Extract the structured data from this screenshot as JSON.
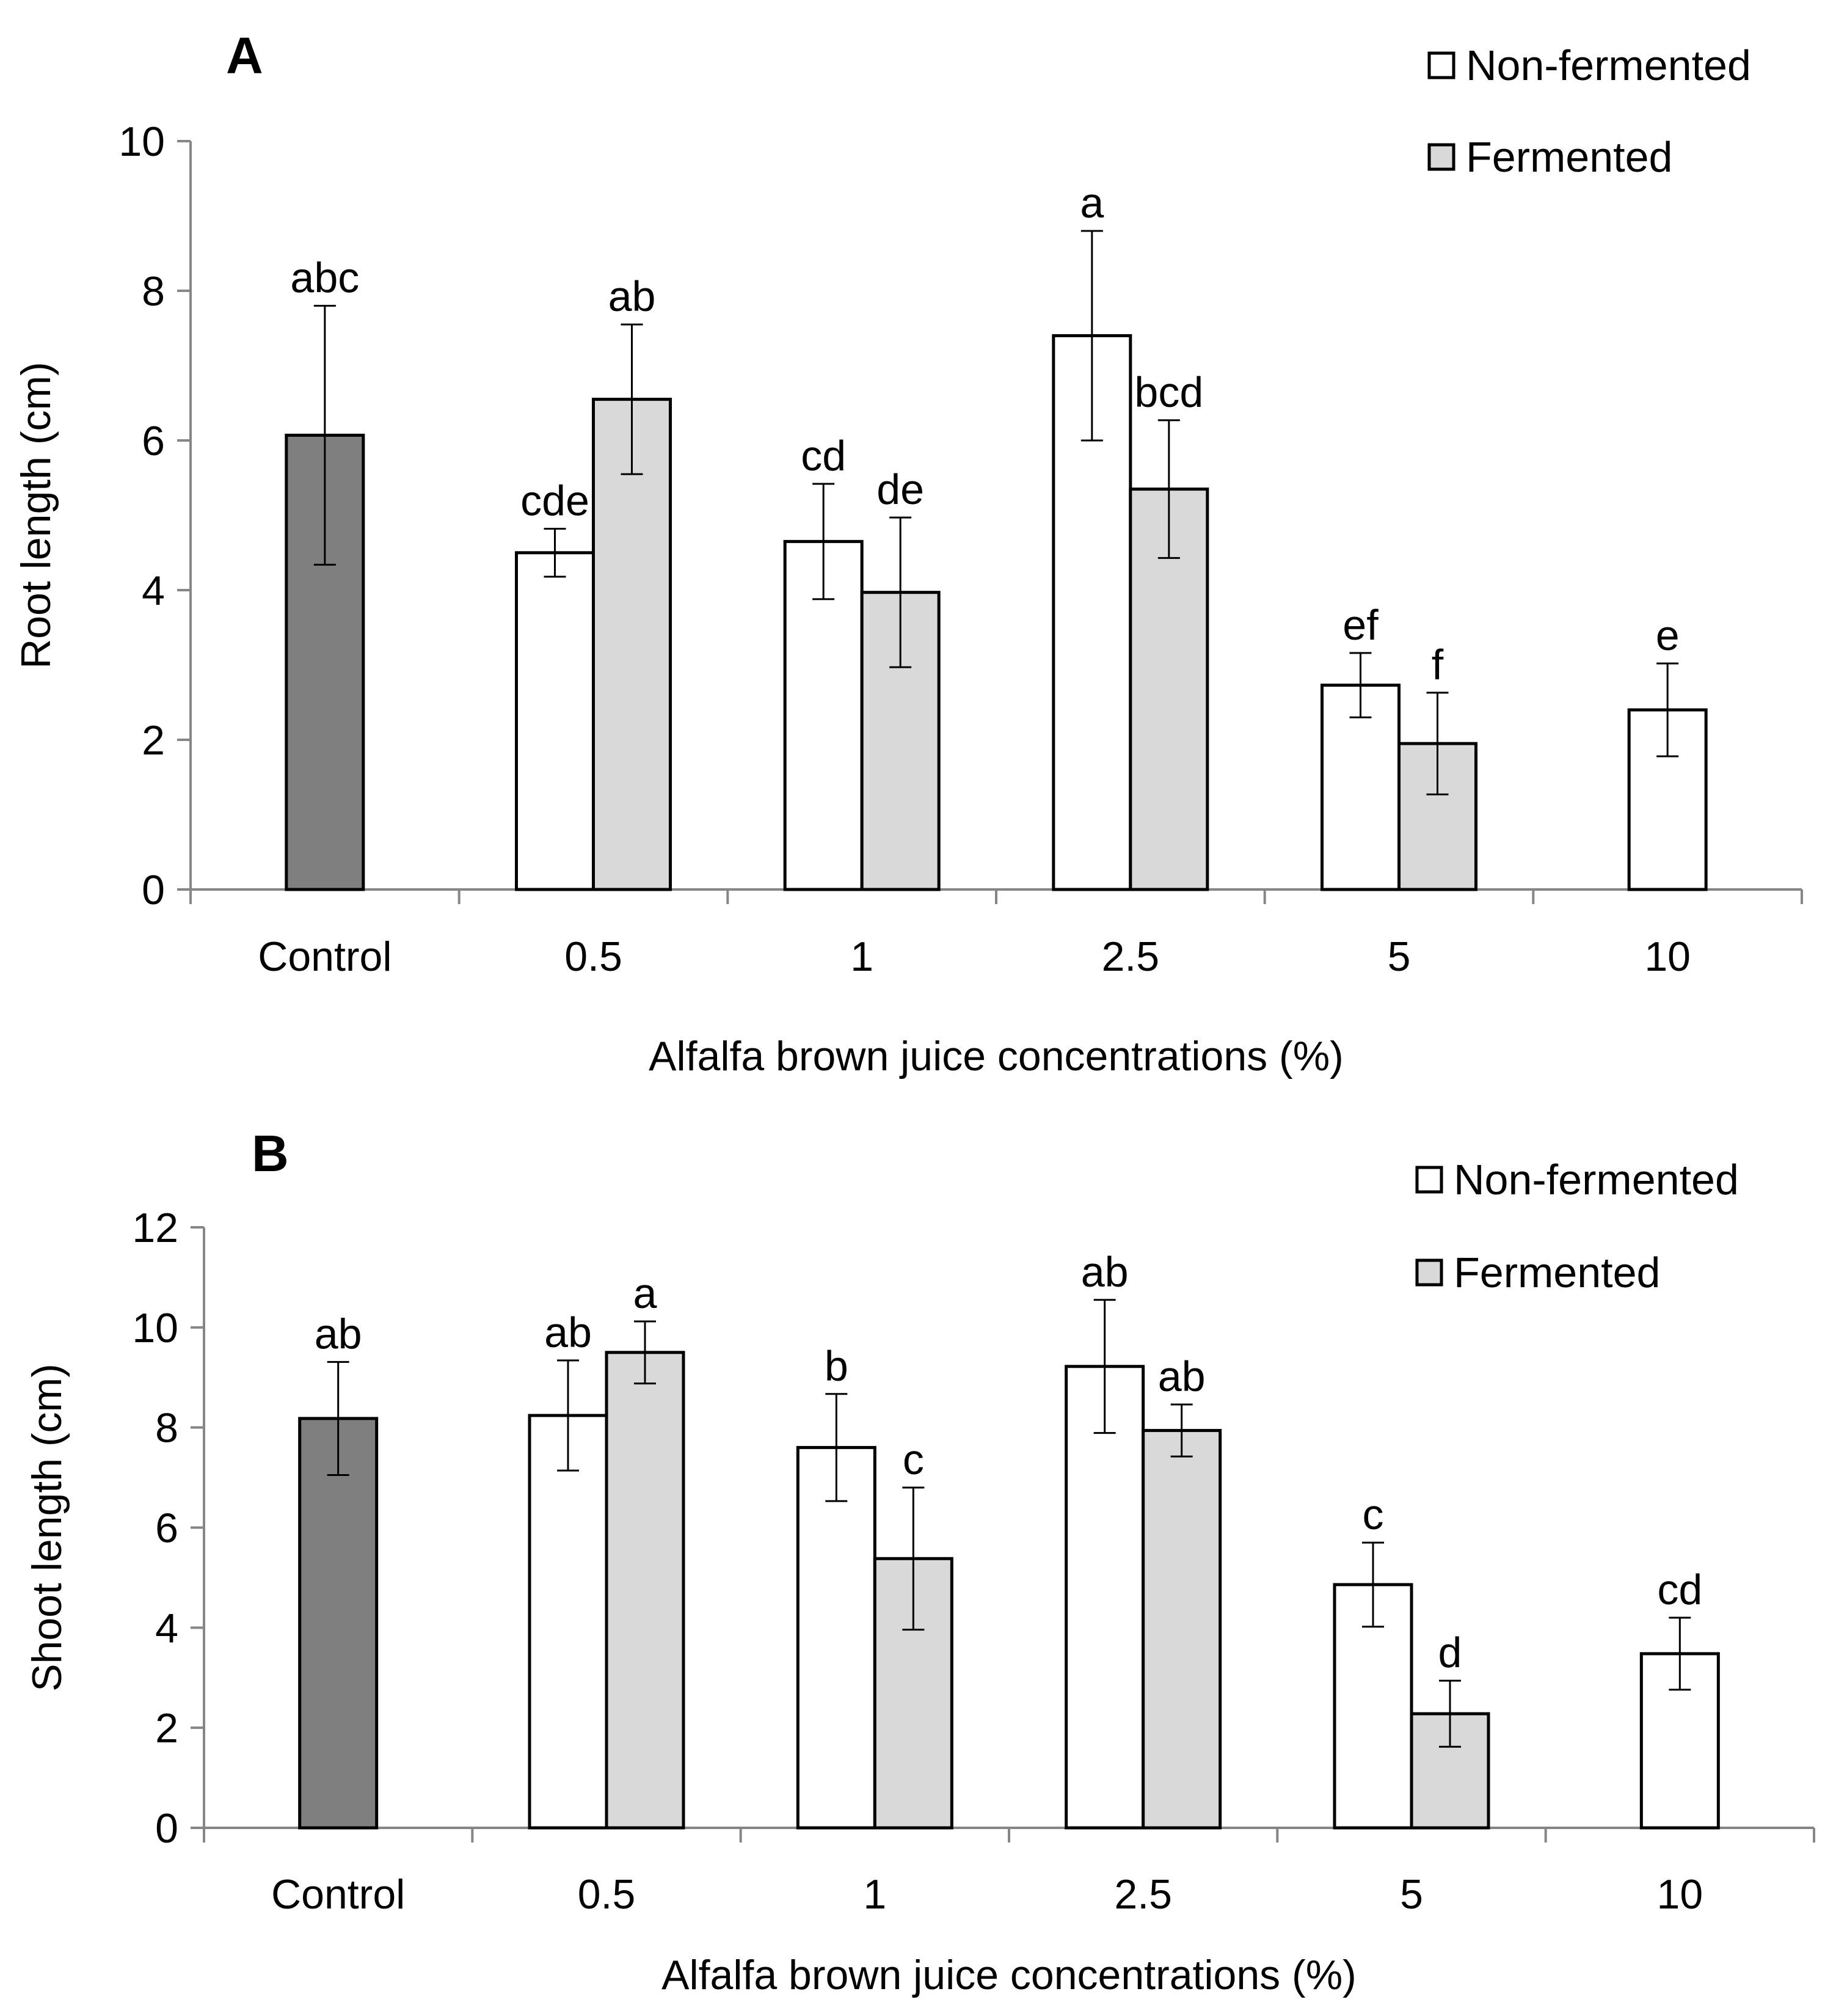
{
  "figure": {
    "colors": {
      "control": "#7f7f7f",
      "non_fermented": "#ffffff",
      "fermented": "#d9d9d9",
      "stroke": "#000000"
    }
  },
  "chart_data": [
    {
      "type": "bar",
      "panel": "A",
      "xlabel": "Alfalfa brown juice concentrations (%)",
      "ylabel": "Root length (cm)",
      "ylim": [
        0,
        10
      ],
      "yticks": [
        0,
        2,
        4,
        6,
        8,
        10
      ],
      "grid": false,
      "legend_position": "top-right",
      "legend": [
        {
          "label": "Non-fermented",
          "key": "non_fermented"
        },
        {
          "label": "Fermented",
          "key": "fermented"
        }
      ],
      "categories": [
        "Control",
        "0.5",
        "1",
        "2.5",
        "5",
        "10"
      ],
      "series": [
        {
          "key": "control",
          "values": [
            6.07,
            null,
            null,
            null,
            null,
            null
          ],
          "errors": [
            1.73,
            null,
            null,
            null,
            null,
            null
          ],
          "letters": [
            "abc",
            null,
            null,
            null,
            null,
            null
          ]
        },
        {
          "name": "Non-fermented",
          "key": "non_fermented",
          "values": [
            null,
            4.5,
            4.65,
            7.4,
            2.73,
            2.4
          ],
          "errors": [
            null,
            0.32,
            0.77,
            1.4,
            0.43,
            0.62
          ],
          "letters": [
            null,
            "cde",
            "cd",
            "a",
            "ef",
            "e"
          ]
        },
        {
          "name": "Fermented",
          "key": "fermented",
          "values": [
            null,
            6.55,
            3.97,
            5.35,
            1.95,
            null
          ],
          "errors": [
            null,
            1.0,
            1.0,
            0.92,
            0.68,
            null
          ],
          "letters": [
            null,
            "ab",
            "de",
            "bcd",
            "f",
            null
          ]
        }
      ]
    },
    {
      "type": "bar",
      "panel": "B",
      "xlabel": "Alfalfa brown juice concentrations (%)",
      "ylabel": "Shoot length (cm)",
      "ylim": [
        0,
        12
      ],
      "yticks": [
        0,
        2,
        4,
        6,
        8,
        10,
        12
      ],
      "grid": false,
      "legend_position": "top-right",
      "legend": [
        {
          "label": "Non-fermented",
          "key": "non_fermented"
        },
        {
          "label": "Fermented",
          "key": "fermented"
        }
      ],
      "categories": [
        "Control",
        "0.5",
        "1",
        "2.5",
        "5",
        "10"
      ],
      "series": [
        {
          "key": "control",
          "values": [
            8.18,
            null,
            null,
            null,
            null,
            null
          ],
          "errors": [
            1.13,
            null,
            null,
            null,
            null,
            null
          ],
          "letters": [
            "ab",
            null,
            null,
            null,
            null,
            null
          ]
        },
        {
          "name": "Non-fermented",
          "key": "non_fermented",
          "values": [
            null,
            8.24,
            7.6,
            9.22,
            4.86,
            3.48
          ],
          "errors": [
            null,
            1.1,
            1.07,
            1.33,
            0.84,
            0.72
          ],
          "letters": [
            null,
            "ab",
            "b",
            "ab",
            "c",
            "cd"
          ]
        },
        {
          "name": "Fermented",
          "key": "fermented",
          "values": [
            null,
            9.5,
            5.38,
            7.94,
            2.28,
            null
          ],
          "errors": [
            null,
            0.62,
            1.42,
            0.52,
            0.66,
            null
          ],
          "letters": [
            null,
            "a",
            "c",
            "ab",
            "d",
            null
          ]
        }
      ]
    }
  ]
}
